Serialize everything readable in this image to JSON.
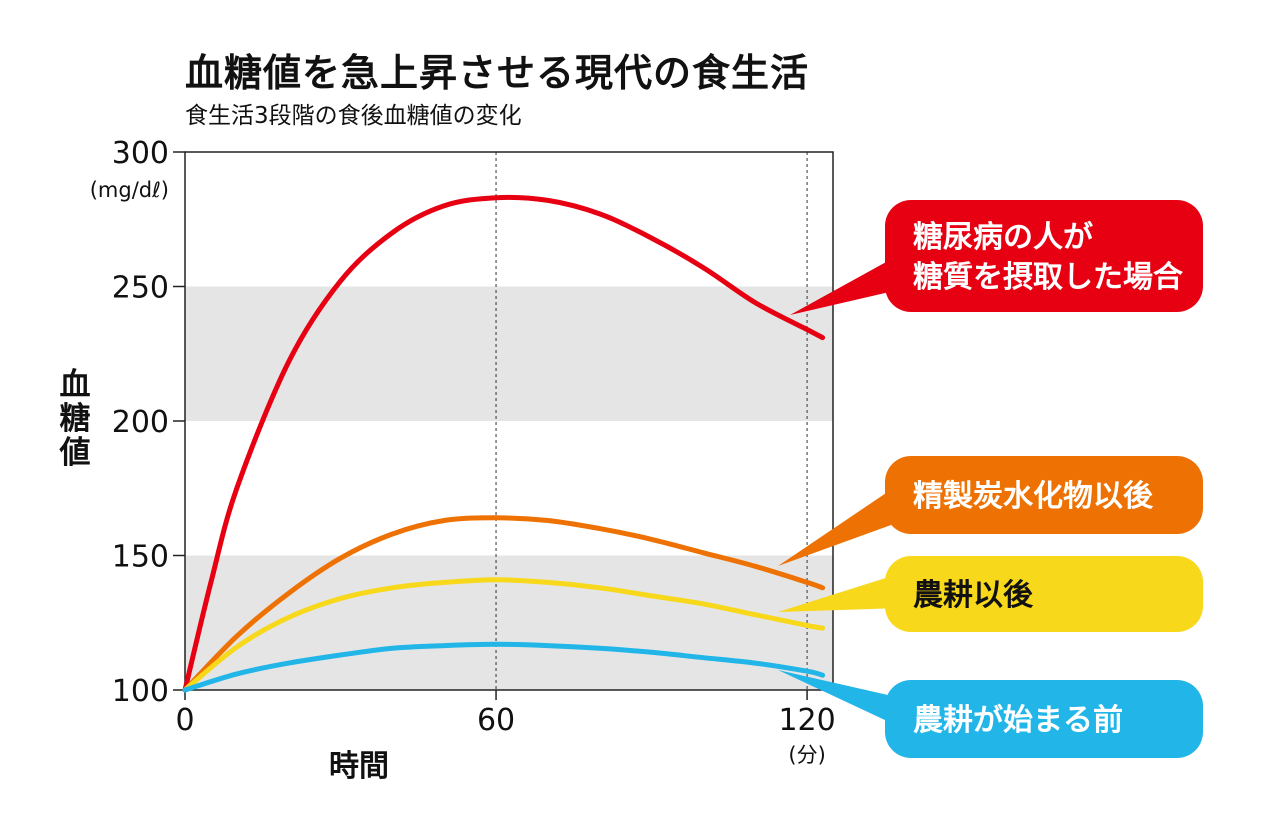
{
  "chart_data": {
    "type": "line",
    "title": "血糖値を急上昇させる現代の食生活",
    "subtitle": "食生活3段階の食後血糖値の変化",
    "xlabel": "時間",
    "ylabel": "血糖値",
    "y_unit": "(mg/dℓ)",
    "x_unit": "(分)",
    "xlim": [
      0,
      125
    ],
    "ylim": [
      100,
      300
    ],
    "x_ticks": [
      0,
      60,
      120
    ],
    "y_ticks": [
      100,
      150,
      200,
      250,
      300
    ],
    "shaded_bands": [
      [
        100,
        150
      ],
      [
        200,
        250
      ]
    ],
    "reference_lines_x": [
      60,
      120
    ],
    "series": [
      {
        "name": "糖尿病の人が糖質を摂取した場合",
        "label_lines": [
          "糖尿病の人が",
          "糖質を摂取した場合"
        ],
        "color": "#e60012",
        "x": [
          0,
          5,
          10,
          20,
          30,
          40,
          50,
          60,
          70,
          80,
          90,
          100,
          110,
          120,
          123
        ],
        "values": [
          100,
          140,
          175,
          222,
          252,
          270,
          280,
          283,
          282,
          277,
          268,
          257,
          244,
          234,
          231
        ]
      },
      {
        "name": "精製炭水化物以後",
        "label_lines": [
          "精製炭水化物以後"
        ],
        "color": "#ee7203",
        "x": [
          0,
          10,
          20,
          30,
          40,
          50,
          60,
          70,
          80,
          90,
          100,
          110,
          120,
          123
        ],
        "values": [
          100,
          120,
          136,
          149,
          158,
          163,
          164,
          163,
          160,
          156,
          151,
          146,
          140,
          138
        ]
      },
      {
        "name": "農耕以後",
        "label_lines": [
          "農耕以後"
        ],
        "color": "#f7d81a",
        "x": [
          0,
          10,
          20,
          30,
          40,
          50,
          60,
          70,
          80,
          90,
          100,
          110,
          120,
          123
        ],
        "values": [
          100,
          116,
          127,
          134,
          138,
          140,
          141,
          140,
          138,
          135,
          132,
          128,
          124,
          123
        ]
      },
      {
        "name": "農耕が始まる前",
        "label_lines": [
          "農耕が始まる前"
        ],
        "color": "#22b5e8",
        "x": [
          0,
          10,
          20,
          30,
          40,
          50,
          60,
          70,
          80,
          90,
          100,
          110,
          120,
          123
        ],
        "values": [
          100,
          106,
          110,
          113,
          115.5,
          116.5,
          117,
          116.5,
          115.5,
          114,
          112,
          110,
          107,
          105.5
        ]
      }
    ]
  }
}
